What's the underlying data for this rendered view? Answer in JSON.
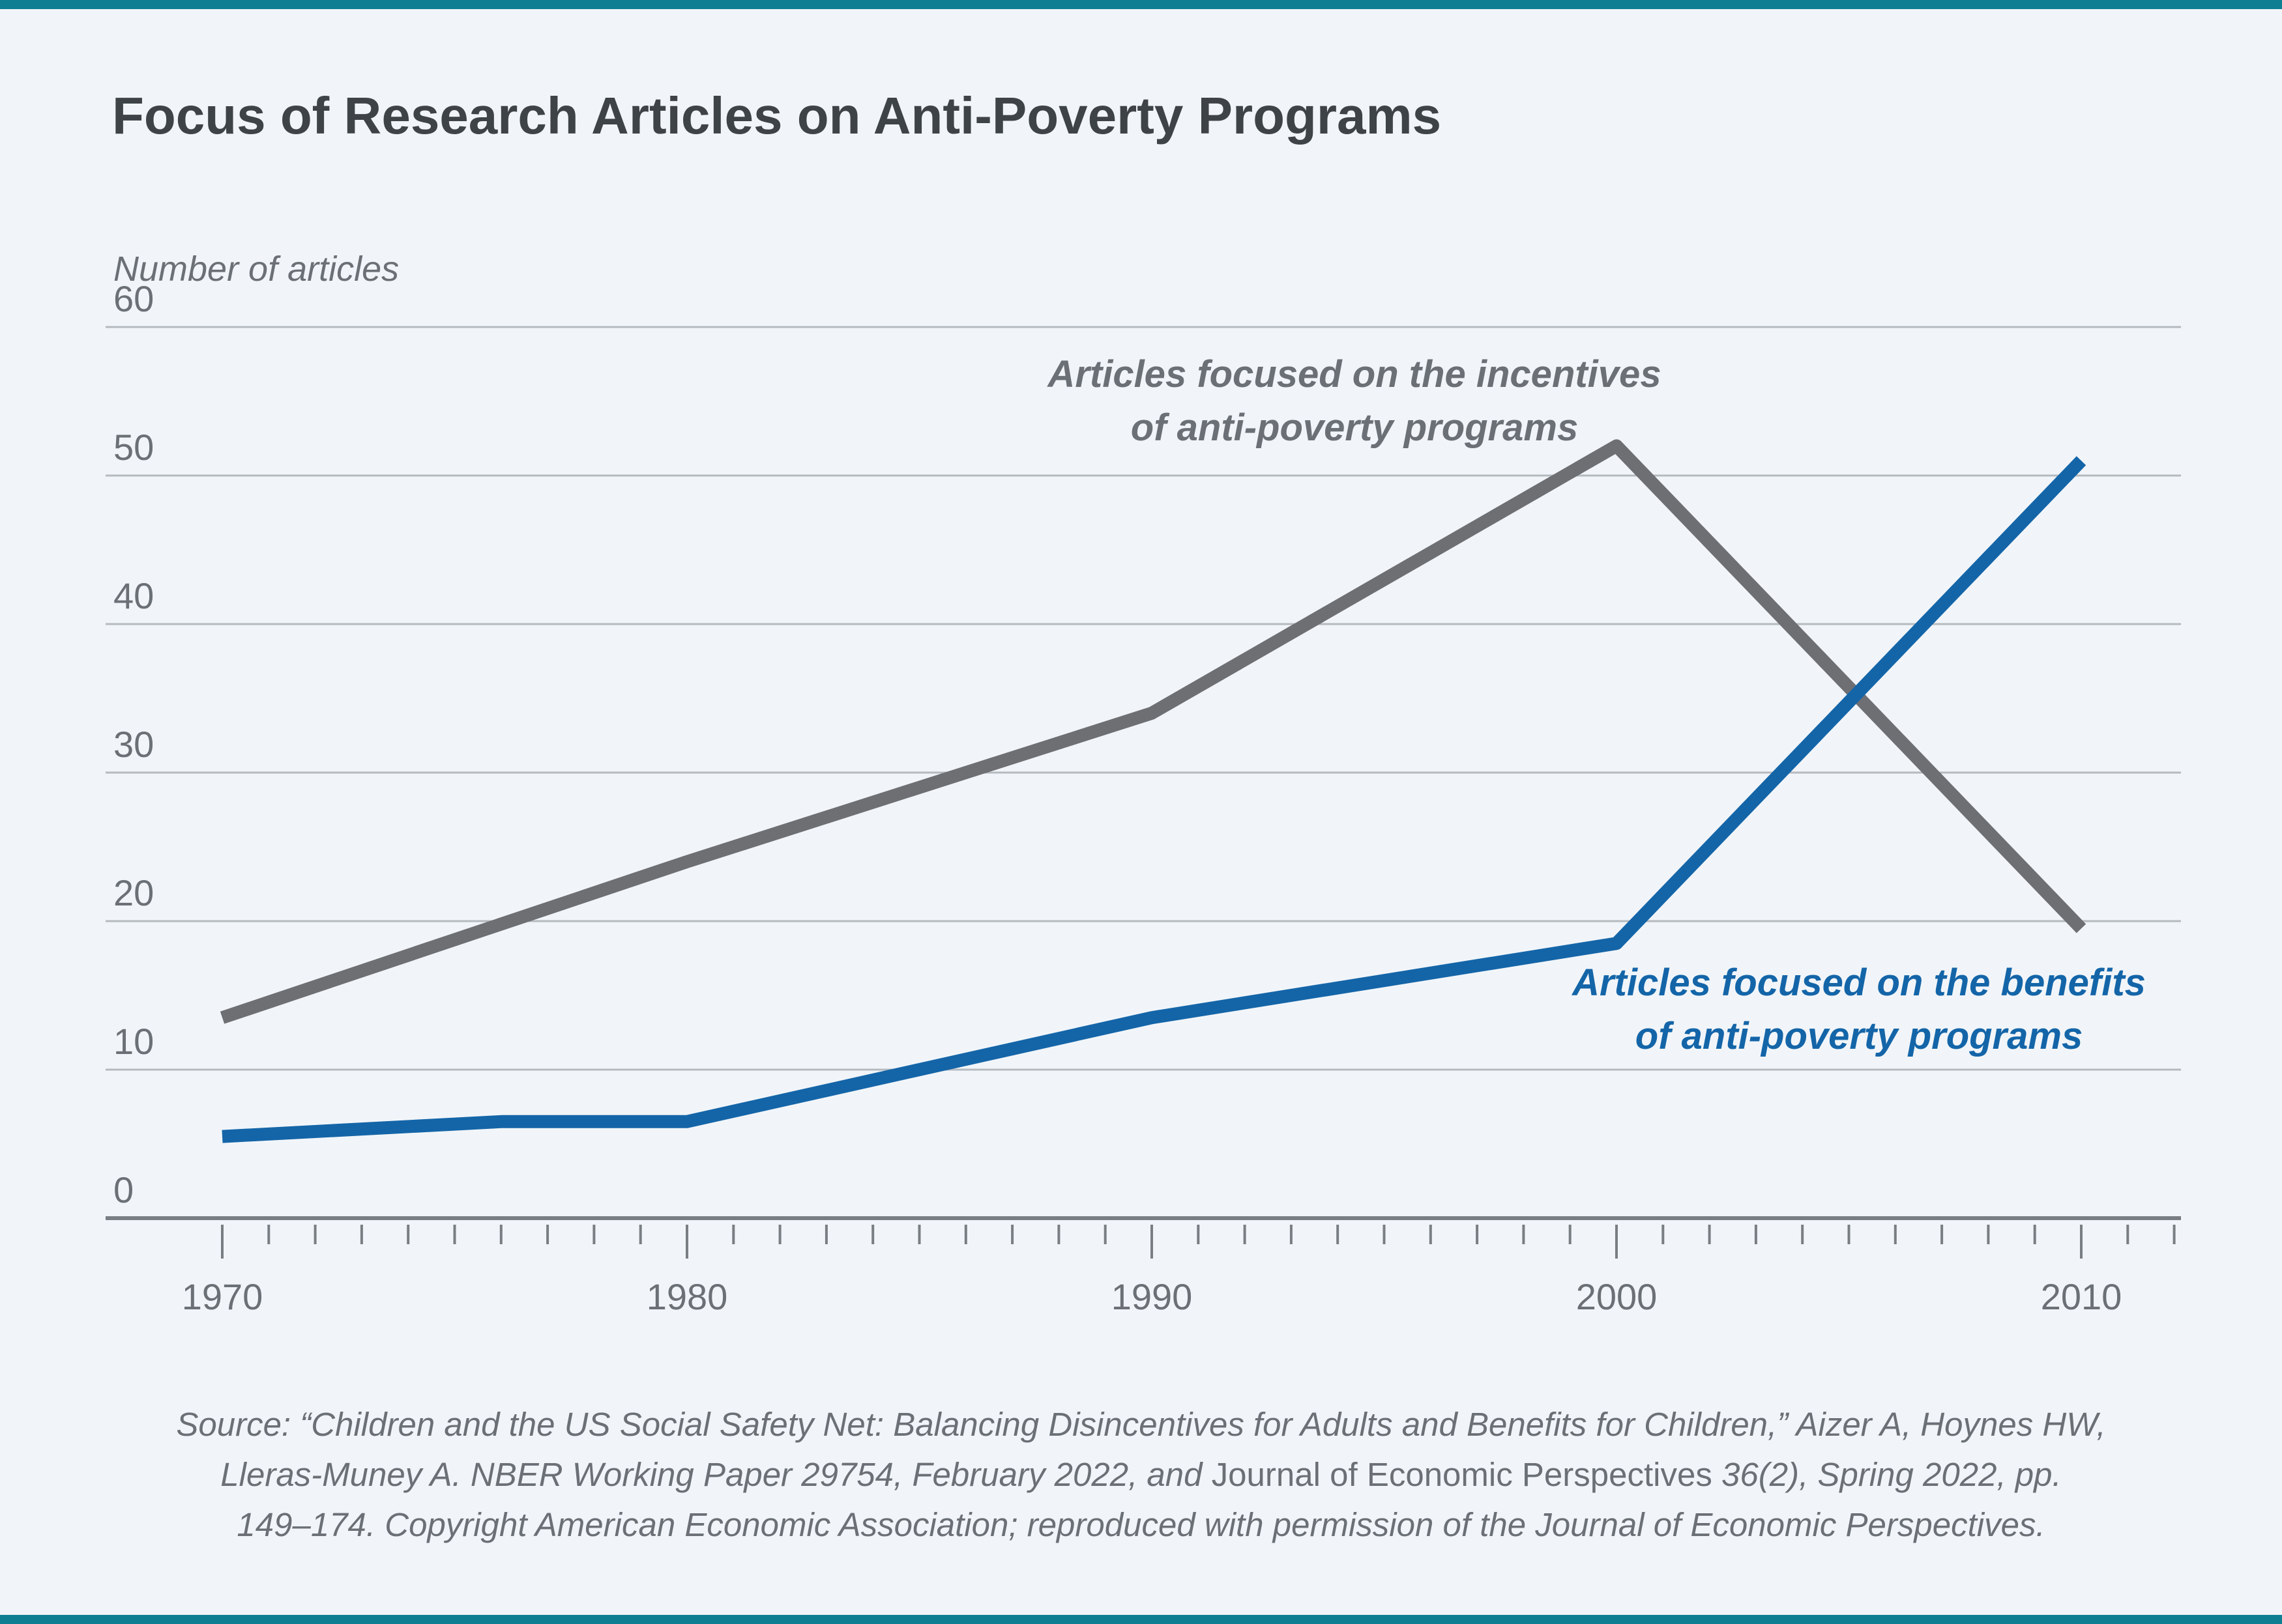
{
  "page": {
    "background_color": "#f1f5f9",
    "accent_bar_color": "#0e7f92"
  },
  "header": {
    "title": "Focus of Research Articles on Anti-Poverty Programs"
  },
  "chart_data": {
    "type": "line",
    "title": "Focus of Research Articles on Anti-Poverty Programs",
    "ylabel": "Number of articles",
    "xlabel": "",
    "ylim": [
      0,
      60
    ],
    "xlim": [
      1967.5,
      2012.2
    ],
    "y_ticks": [
      0,
      10,
      20,
      30,
      40,
      50,
      60
    ],
    "x_decade_ticks": [
      1970,
      1980,
      1990,
      2000,
      2010
    ],
    "x_minor_tick_start": 1970,
    "x_minor_tick_end": 2012,
    "grid": "horizontal",
    "legend_position": "inline-annotations",
    "colors": {
      "incentives_line": "#6e6f73",
      "benefits_line": "#1465a8",
      "gridline": "#b5bac0",
      "axis": "#797e84",
      "tick_label": "#6b7077"
    },
    "series": [
      {
        "name": "Articles focused on the incentives of anti-poverty programs",
        "color": "#6e6f73",
        "points": [
          [
            1970,
            13.5
          ],
          [
            1980,
            24
          ],
          [
            1990,
            34
          ],
          [
            2000,
            52
          ],
          [
            2010,
            19.5
          ]
        ]
      },
      {
        "name": "Articles focused on the benefits of anti-poverty programs",
        "color": "#1465a8",
        "points": [
          [
            1970,
            5.5
          ],
          [
            1976,
            6.5
          ],
          [
            1980,
            6.5
          ],
          [
            1990,
            13.5
          ],
          [
            2000,
            18.5
          ],
          [
            2010,
            51
          ]
        ]
      }
    ],
    "annotations": [
      {
        "id": "incentives",
        "line1": "Articles focused on the incentives",
        "line2": "of anti-poverty programs",
        "color": "#6b7077",
        "x": 2078,
        "y": 534
      },
      {
        "id": "benefits",
        "line1": "Articles focused on the benefits",
        "line2": "of anti-poverty programs",
        "color": "#1465a8",
        "x": 2852,
        "y": 1468
      }
    ]
  },
  "source_note": {
    "line1": "Source: “Children and the US Social Safety Net: Balancing Disincentives for Adults and Benefits for Children,” Aizer A, Hoynes HW,",
    "line2_pre": "Lleras-Muney A. NBER Working Paper 29754, February 2022, and ",
    "line2_journal": "Journal of Economic Perspectives",
    "line2_post": " 36(2), Spring 2022, pp.",
    "line3": "149–174. Copyright American Economic Association; reproduced with permission of the Journal of Economic Perspectives."
  }
}
